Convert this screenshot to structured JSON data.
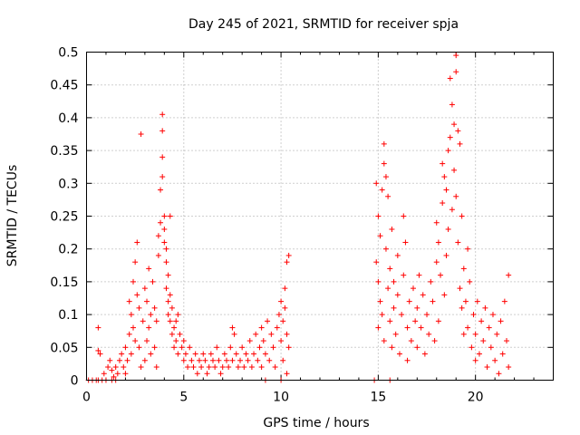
{
  "chart_data": {
    "type": "scatter",
    "title": "Day 245 of 2021, SRMTID for receiver spja",
    "xlabel": "GPS time / hours",
    "ylabel": "SRMTID / TECUs",
    "xlim": [
      0,
      24
    ],
    "ylim": [
      0,
      0.5
    ],
    "xticks": [
      0,
      5,
      10,
      15,
      20
    ],
    "xtick_labels": [
      "0",
      "5",
      "10",
      "15",
      "20"
    ],
    "yticks": [
      0,
      0.05,
      0.1,
      0.15,
      0.2,
      0.25,
      0.3,
      0.35,
      0.4,
      0.45,
      0.5
    ],
    "ytick_labels": [
      "0",
      "0.05",
      "0.1",
      "0.15",
      "0.2",
      "0.25",
      "0.3",
      "0.35",
      "0.4",
      "0.45",
      "0.5"
    ],
    "grid": true,
    "marker": "+",
    "series": [
      {
        "name": "SRMTID",
        "color": "#ff0000",
        "points": [
          [
            0.1,
            0.0
          ],
          [
            0.3,
            0.0
          ],
          [
            0.5,
            0.0
          ],
          [
            0.6,
            0.0
          ],
          [
            0.8,
            0.0
          ],
          [
            1.0,
            0.0
          ],
          [
            1.3,
            0.0
          ],
          [
            1.5,
            0.0
          ],
          [
            0.6,
            0.08
          ],
          [
            0.6,
            0.045
          ],
          [
            0.7,
            0.04
          ],
          [
            0.9,
            0.01
          ],
          [
            1.1,
            0.02
          ],
          [
            1.2,
            0.03
          ],
          [
            1.3,
            0.015
          ],
          [
            1.4,
            0.005
          ],
          [
            1.5,
            0.02
          ],
          [
            1.6,
            0.01
          ],
          [
            1.7,
            0.03
          ],
          [
            1.8,
            0.04
          ],
          [
            1.9,
            0.02
          ],
          [
            2.0,
            0.05
          ],
          [
            2.0,
            0.01
          ],
          [
            2.1,
            0.03
          ],
          [
            2.2,
            0.07
          ],
          [
            2.2,
            0.12
          ],
          [
            2.3,
            0.1
          ],
          [
            2.3,
            0.04
          ],
          [
            2.4,
            0.15
          ],
          [
            2.4,
            0.08
          ],
          [
            2.5,
            0.06
          ],
          [
            2.5,
            0.18
          ],
          [
            2.6,
            0.21
          ],
          [
            2.6,
            0.13
          ],
          [
            2.7,
            0.11
          ],
          [
            2.7,
            0.05
          ],
          [
            2.8,
            0.375
          ],
          [
            2.8,
            0.02
          ],
          [
            2.9,
            0.09
          ],
          [
            3.0,
            0.03
          ],
          [
            3.0,
            0.14
          ],
          [
            3.1,
            0.12
          ],
          [
            3.1,
            0.06
          ],
          [
            3.2,
            0.08
          ],
          [
            3.2,
            0.17
          ],
          [
            3.3,
            0.04
          ],
          [
            3.3,
            0.1
          ],
          [
            3.4,
            0.15
          ],
          [
            3.5,
            0.05
          ],
          [
            3.5,
            0.11
          ],
          [
            3.6,
            0.09
          ],
          [
            3.6,
            0.02
          ],
          [
            3.7,
            0.19
          ],
          [
            3.7,
            0.22
          ],
          [
            3.8,
            0.24
          ],
          [
            3.8,
            0.29
          ],
          [
            3.9,
            0.31
          ],
          [
            3.9,
            0.34
          ],
          [
            3.9,
            0.38
          ],
          [
            3.9,
            0.405
          ],
          [
            4.0,
            0.25
          ],
          [
            4.0,
            0.23
          ],
          [
            4.0,
            0.21
          ],
          [
            4.1,
            0.2
          ],
          [
            4.1,
            0.18
          ],
          [
            4.1,
            0.14
          ],
          [
            4.2,
            0.16
          ],
          [
            4.2,
            0.12
          ],
          [
            4.2,
            0.1
          ],
          [
            4.3,
            0.13
          ],
          [
            4.3,
            0.09
          ],
          [
            4.3,
            0.25
          ],
          [
            4.4,
            0.07
          ],
          [
            4.4,
            0.11
          ],
          [
            4.5,
            0.05
          ],
          [
            4.5,
            0.08
          ],
          [
            4.6,
            0.06
          ],
          [
            4.6,
            0.09
          ],
          [
            4.7,
            0.04
          ],
          [
            4.7,
            0.1
          ],
          [
            4.8,
            0.07
          ],
          [
            4.9,
            0.05
          ],
          [
            5.0,
            0.03
          ],
          [
            5.0,
            0.06
          ],
          [
            5.1,
            0.04
          ],
          [
            5.2,
            0.02
          ],
          [
            5.3,
            0.05
          ],
          [
            5.4,
            0.03
          ],
          [
            5.5,
            0.02
          ],
          [
            5.6,
            0.04
          ],
          [
            5.7,
            0.01
          ],
          [
            5.8,
            0.03
          ],
          [
            5.9,
            0.02
          ],
          [
            6.0,
            0.04
          ],
          [
            6.1,
            0.03
          ],
          [
            6.2,
            0.01
          ],
          [
            6.3,
            0.02
          ],
          [
            6.4,
            0.04
          ],
          [
            6.5,
            0.03
          ],
          [
            6.6,
            0.02
          ],
          [
            6.7,
            0.05
          ],
          [
            6.8,
            0.03
          ],
          [
            6.9,
            0.01
          ],
          [
            7.0,
            0.02
          ],
          [
            7.1,
            0.04
          ],
          [
            7.2,
            0.03
          ],
          [
            7.3,
            0.02
          ],
          [
            7.4,
            0.05
          ],
          [
            7.5,
            0.08
          ],
          [
            7.5,
            0.03
          ],
          [
            7.6,
            0.07
          ],
          [
            7.7,
            0.04
          ],
          [
            7.8,
            0.02
          ],
          [
            7.9,
            0.03
          ],
          [
            8.0,
            0.05
          ],
          [
            8.1,
            0.02
          ],
          [
            8.2,
            0.04
          ],
          [
            8.3,
            0.03
          ],
          [
            8.4,
            0.06
          ],
          [
            8.5,
            0.02
          ],
          [
            8.6,
            0.04
          ],
          [
            8.7,
            0.07
          ],
          [
            8.8,
            0.03
          ],
          [
            8.9,
            0.05
          ],
          [
            9.0,
            0.08
          ],
          [
            9.0,
            0.02
          ],
          [
            9.1,
            0.06
          ],
          [
            9.2,
            0.04
          ],
          [
            9.3,
            0.09
          ],
          [
            9.4,
            0.03
          ],
          [
            9.5,
            0.07
          ],
          [
            9.6,
            0.05
          ],
          [
            9.7,
            0.02
          ],
          [
            9.8,
            0.08
          ],
          [
            9.9,
            0.1
          ],
          [
            10.0,
            0.06
          ],
          [
            10.0,
            0.12
          ],
          [
            10.1,
            0.09
          ],
          [
            10.1,
            0.03
          ],
          [
            10.2,
            0.11
          ],
          [
            10.2,
            0.14
          ],
          [
            10.3,
            0.07
          ],
          [
            10.3,
            0.18
          ],
          [
            10.4,
            0.19
          ],
          [
            10.4,
            0.05
          ],
          [
            10.3,
            0.01
          ],
          [
            9.2,
            0.0
          ],
          [
            10.0,
            0.0
          ],
          [
            14.8,
            0.0
          ],
          [
            15.6,
            0.0
          ],
          [
            14.9,
            0.3
          ],
          [
            14.9,
            0.18
          ],
          [
            15.0,
            0.25
          ],
          [
            15.0,
            0.15
          ],
          [
            15.0,
            0.08
          ],
          [
            15.1,
            0.22
          ],
          [
            15.1,
            0.12
          ],
          [
            15.2,
            0.29
          ],
          [
            15.2,
            0.1
          ],
          [
            15.3,
            0.33
          ],
          [
            15.3,
            0.06
          ],
          [
            15.3,
            0.36
          ],
          [
            15.4,
            0.31
          ],
          [
            15.4,
            0.2
          ],
          [
            15.5,
            0.28
          ],
          [
            15.5,
            0.14
          ],
          [
            15.6,
            0.17
          ],
          [
            15.6,
            0.09
          ],
          [
            15.7,
            0.23
          ],
          [
            15.7,
            0.05
          ],
          [
            15.8,
            0.15
          ],
          [
            15.8,
            0.11
          ],
          [
            15.9,
            0.07
          ],
          [
            16.0,
            0.13
          ],
          [
            16.0,
            0.19
          ],
          [
            16.1,
            0.04
          ],
          [
            16.2,
            0.1
          ],
          [
            16.3,
            0.25
          ],
          [
            16.3,
            0.16
          ],
          [
            16.4,
            0.21
          ],
          [
            16.5,
            0.08
          ],
          [
            16.5,
            0.03
          ],
          [
            16.6,
            0.12
          ],
          [
            16.7,
            0.06
          ],
          [
            16.8,
            0.14
          ],
          [
            16.9,
            0.09
          ],
          [
            17.0,
            0.11
          ],
          [
            17.0,
            0.05
          ],
          [
            17.1,
            0.16
          ],
          [
            17.2,
            0.08
          ],
          [
            17.3,
            0.13
          ],
          [
            17.4,
            0.04
          ],
          [
            17.5,
            0.1
          ],
          [
            17.6,
            0.07
          ],
          [
            17.7,
            0.15
          ],
          [
            17.8,
            0.12
          ],
          [
            17.9,
            0.06
          ],
          [
            18.0,
            0.18
          ],
          [
            18.0,
            0.24
          ],
          [
            18.1,
            0.21
          ],
          [
            18.1,
            0.09
          ],
          [
            18.2,
            0.16
          ],
          [
            18.3,
            0.27
          ],
          [
            18.3,
            0.33
          ],
          [
            18.4,
            0.31
          ],
          [
            18.4,
            0.13
          ],
          [
            18.5,
            0.29
          ],
          [
            18.5,
            0.19
          ],
          [
            18.6,
            0.35
          ],
          [
            18.6,
            0.23
          ],
          [
            18.7,
            0.46
          ],
          [
            18.7,
            0.37
          ],
          [
            18.8,
            0.42
          ],
          [
            18.8,
            0.26
          ],
          [
            18.9,
            0.39
          ],
          [
            18.9,
            0.32
          ],
          [
            19.0,
            0.495
          ],
          [
            19.0,
            0.47
          ],
          [
            19.0,
            0.28
          ],
          [
            19.1,
            0.38
          ],
          [
            19.1,
            0.21
          ],
          [
            19.2,
            0.36
          ],
          [
            19.2,
            0.14
          ],
          [
            19.3,
            0.25
          ],
          [
            19.3,
            0.11
          ],
          [
            19.4,
            0.17
          ],
          [
            19.4,
            0.07
          ],
          [
            19.5,
            0.12
          ],
          [
            19.6,
            0.2
          ],
          [
            19.6,
            0.08
          ],
          [
            19.7,
            0.15
          ],
          [
            19.8,
            0.05
          ],
          [
            19.9,
            0.1
          ],
          [
            20.0,
            0.03
          ],
          [
            20.0,
            0.07
          ],
          [
            20.1,
            0.12
          ],
          [
            20.2,
            0.04
          ],
          [
            20.3,
            0.09
          ],
          [
            20.4,
            0.06
          ],
          [
            20.5,
            0.11
          ],
          [
            20.6,
            0.02
          ],
          [
            20.7,
            0.08
          ],
          [
            20.8,
            0.05
          ],
          [
            20.9,
            0.1
          ],
          [
            21.0,
            0.03
          ],
          [
            21.1,
            0.07
          ],
          [
            21.2,
            0.01
          ],
          [
            21.3,
            0.09
          ],
          [
            21.4,
            0.04
          ],
          [
            21.5,
            0.12
          ],
          [
            21.6,
            0.06
          ],
          [
            21.7,
            0.16
          ],
          [
            21.7,
            0.02
          ]
        ]
      }
    ]
  }
}
